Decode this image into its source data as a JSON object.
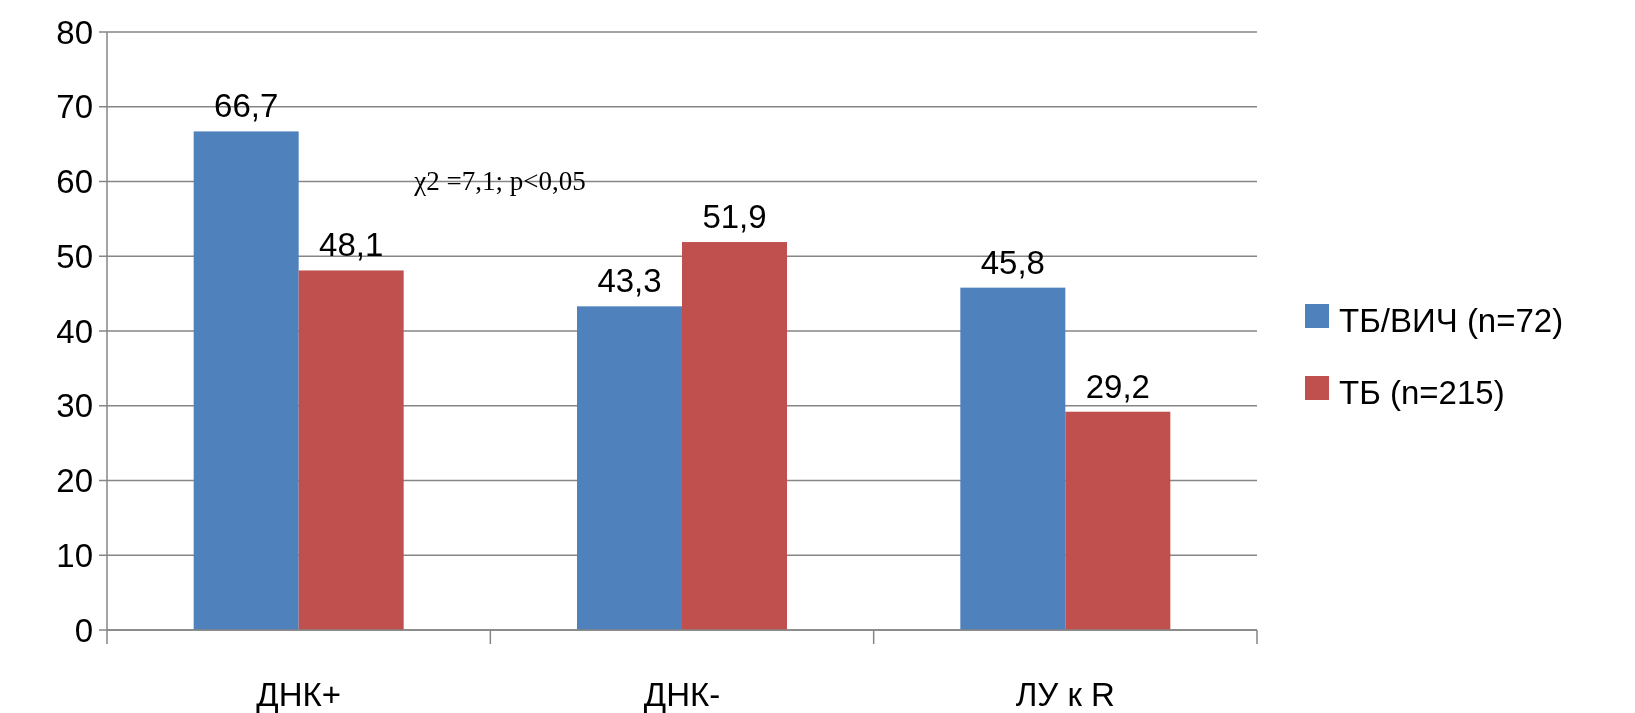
{
  "chart_data": {
    "type": "bar",
    "categories": [
      "ДНК+",
      "ДНК-",
      "ЛУ к R"
    ],
    "series": [
      {
        "name": "ТБ/ВИЧ (n=72)",
        "color": "#4f81bd",
        "values": [
          66.7,
          43.3,
          45.8
        ],
        "value_labels": [
          "66,7",
          "43,3",
          "45,8"
        ]
      },
      {
        "name": "ТБ (n=215)",
        "color": "#c0504d",
        "values": [
          48.1,
          51.9,
          29.2
        ],
        "value_labels": [
          "48,1",
          "51,9",
          "29,2"
        ]
      }
    ],
    "ylim": [
      0,
      80
    ],
    "yticks": [
      0,
      10,
      20,
      30,
      40,
      50,
      60,
      70,
      80
    ],
    "grid": "y",
    "legend": "right",
    "annotations": [
      "χ2 =7,1; p<0,05"
    ]
  }
}
